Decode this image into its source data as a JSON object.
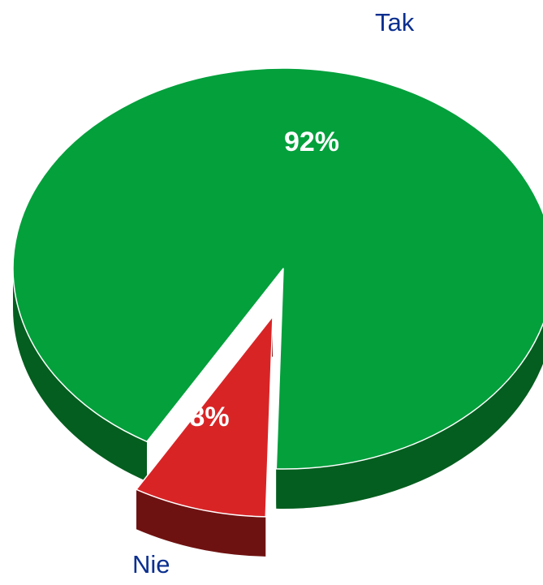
{
  "chart_data": {
    "type": "pie",
    "style": "3d-exploded",
    "title": "",
    "slices": [
      {
        "label": "Tak",
        "value": 92,
        "value_label": "92%",
        "color": "#03A03C",
        "side_color": "#045E1F"
      },
      {
        "label": "Nie",
        "value": 8,
        "value_label": "8%",
        "color": "#D92426",
        "side_color": "#6E1211"
      }
    ],
    "label_color": "#0B2F8F",
    "value_label_color": "#FFFFFF"
  }
}
